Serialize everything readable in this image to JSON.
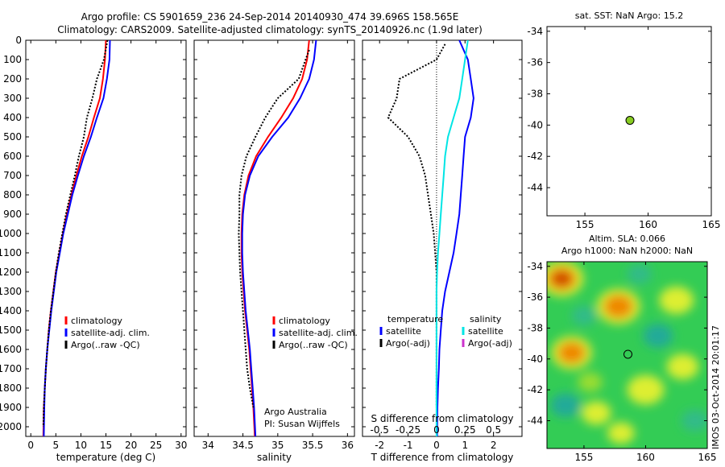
{
  "header": {
    "title_line1": "Argo profile: CS 5901659_236 24-Sep-2014 20140930_474 39.696S 158.565E",
    "title_line2": "Climatology: CARS2009. Satellite-adjusted climatology: synTS_20140926.nc (1.9d later)"
  },
  "colors": {
    "climatology": "#ff0000",
    "satellite": "#0000ff",
    "argo": "#000000",
    "satellite_salinity": "#00e5e5",
    "argo_salinity_adj": "#cc33cc",
    "marker": "#88cc22"
  },
  "watermark": "IMOS 03-Oct-2014 20:01:17",
  "chart_data": [
    {
      "id": "temperature",
      "type": "line",
      "xlabel": "temperature (deg C)",
      "xlim": [
        -1,
        31
      ],
      "xticks": [
        0,
        5,
        10,
        15,
        20,
        25,
        30
      ],
      "ylim": [
        2050,
        0
      ],
      "yticks": [
        0,
        100,
        200,
        300,
        400,
        500,
        600,
        700,
        800,
        900,
        1000,
        1100,
        1200,
        1300,
        1400,
        1500,
        1600,
        1700,
        1800,
        1900,
        2000
      ],
      "legend": [
        "climatology",
        "satellite-adj. clim.",
        "Argo(..raw -QC)"
      ],
      "series": [
        {
          "name": "climatology",
          "color": "#ff0000",
          "x": [
            15.0,
            14.8,
            14.4,
            13.8,
            12.6,
            11.5,
            10.2,
            9.1,
            8.1,
            7.2,
            6.4,
            5.7,
            5.0,
            4.5,
            4.0,
            3.6,
            3.3,
            3.0,
            2.8,
            2.6,
            2.5
          ],
          "y": [
            0,
            100,
            200,
            300,
            400,
            500,
            600,
            700,
            800,
            900,
            1000,
            1100,
            1200,
            1300,
            1400,
            1500,
            1600,
            1700,
            1800,
            1900,
            2050
          ]
        },
        {
          "name": "satellite-adj. clim.",
          "color": "#0000ff",
          "x": [
            15.8,
            15.7,
            15.2,
            14.5,
            13.2,
            12.0,
            10.6,
            9.4,
            8.3,
            7.4,
            6.5,
            5.8,
            5.1,
            4.6,
            4.1,
            3.7,
            3.3,
            3.0,
            2.8,
            2.7,
            2.6
          ],
          "y": [
            0,
            100,
            200,
            300,
            400,
            500,
            600,
            700,
            800,
            900,
            1000,
            1100,
            1200,
            1300,
            1400,
            1500,
            1600,
            1700,
            1800,
            1900,
            2050
          ]
        },
        {
          "name": "Argo(..raw -QC)",
          "color": "#000000",
          "x": [
            15.3,
            14.6,
            13.2,
            12.3,
            11.2,
            10.6,
            9.6,
            8.8,
            7.9,
            7.0,
            6.3,
            5.6,
            5.0,
            4.5,
            4.0,
            3.6,
            3.3,
            3.0,
            2.8,
            2.6,
            2.5
          ],
          "y": [
            0,
            100,
            200,
            300,
            400,
            500,
            600,
            700,
            800,
            900,
            1000,
            1100,
            1200,
            1300,
            1400,
            1500,
            1600,
            1700,
            1800,
            1900,
            2000
          ]
        }
      ]
    },
    {
      "id": "salinity",
      "type": "line",
      "xlabel": "salinity",
      "xlim": [
        33.8,
        36.1
      ],
      "xticks": [
        34,
        34.5,
        35,
        35.5,
        36
      ],
      "ylim": [
        2050,
        0
      ],
      "legend": [
        "climatology",
        "satellite-adj. clim.",
        "Argo(..raw -QC)"
      ],
      "annotation": [
        "Argo Australia",
        "PI: Susan Wijffels"
      ],
      "series": [
        {
          "name": "climatology",
          "color": "#ff0000",
          "x": [
            35.45,
            35.42,
            35.35,
            35.22,
            35.05,
            34.86,
            34.69,
            34.58,
            34.52,
            34.49,
            34.48,
            34.48,
            34.49,
            34.51,
            34.53,
            34.56,
            34.59,
            34.61,
            34.63,
            34.65,
            34.67
          ],
          "y": [
            0,
            100,
            200,
            300,
            400,
            500,
            600,
            700,
            800,
            900,
            1000,
            1100,
            1200,
            1300,
            1400,
            1500,
            1600,
            1700,
            1800,
            1900,
            2050
          ]
        },
        {
          "name": "satellite-adj. clim.",
          "color": "#0000ff",
          "x": [
            35.55,
            35.52,
            35.45,
            35.32,
            35.15,
            34.92,
            34.72,
            34.6,
            34.53,
            34.5,
            34.49,
            34.49,
            34.5,
            34.52,
            34.54,
            34.57,
            34.6,
            34.62,
            34.64,
            34.66,
            34.68
          ],
          "y": [
            0,
            100,
            200,
            300,
            400,
            500,
            600,
            700,
            800,
            900,
            1000,
            1100,
            1200,
            1300,
            1400,
            1500,
            1600,
            1700,
            1800,
            1900,
            2050
          ]
        },
        {
          "name": "Argo(..raw -QC)",
          "color": "#000000",
          "x": [
            35.45,
            35.4,
            35.3,
            35.0,
            34.82,
            34.68,
            34.55,
            34.48,
            34.45,
            34.45,
            34.44,
            34.45,
            34.46,
            34.48,
            34.5,
            34.52,
            34.54,
            34.56,
            34.6,
            34.65
          ],
          "y": [
            50,
            100,
            200,
            300,
            400,
            500,
            600,
            700,
            800,
            900,
            1000,
            1100,
            1200,
            1300,
            1400,
            1500,
            1600,
            1700,
            1800,
            1900
          ]
        }
      ]
    },
    {
      "id": "difference",
      "type": "line",
      "xlabel": "T difference from climatology",
      "xlabel_top": "S difference from climatology",
      "xlim": [
        -2.6,
        3.0
      ],
      "xticks": [
        -2,
        -1,
        0,
        1,
        2
      ],
      "xticks_salinity": [
        "-0.5",
        "-0.25",
        "0",
        "0.25",
        "0.5"
      ],
      "ylim": [
        2050,
        0
      ],
      "legend_temperature": {
        "title": "temperature",
        "items": [
          "satellite",
          "Argo(-adj)"
        ]
      },
      "legend_salinity": {
        "title": "salinity",
        "items": [
          "satellite",
          "Argo(-adj)"
        ]
      },
      "series": [
        {
          "name": "temperature satellite",
          "color": "#0000ff",
          "x": [
            0.8,
            1.1,
            1.2,
            1.3,
            1.2,
            1.0,
            0.95,
            0.9,
            0.85,
            0.8,
            0.7,
            0.6,
            0.45,
            0.3,
            0.2,
            0.15,
            0.1,
            0.08,
            0.05,
            0.03,
            0.02
          ],
          "y": [
            0,
            100,
            200,
            300,
            400,
            500,
            600,
            700,
            800,
            900,
            1000,
            1100,
            1200,
            1300,
            1400,
            1500,
            1600,
            1700,
            1800,
            1900,
            2050
          ]
        },
        {
          "name": "temperature Argo(-adj)",
          "color": "#000000",
          "x": [
            0.3,
            0.0,
            -1.3,
            -1.4,
            -1.7,
            -1.0,
            -0.6,
            -0.4,
            -0.3,
            -0.2,
            -0.1,
            -0.05,
            0.0,
            0.0,
            0.0,
            0.0,
            0.0,
            0.0,
            0.0,
            0.0
          ],
          "y": [
            20,
            100,
            200,
            300,
            400,
            500,
            600,
            700,
            800,
            900,
            1000,
            1100,
            1200,
            1300,
            1400,
            1500,
            1600,
            1700,
            1800,
            1900
          ]
        },
        {
          "name": "salinity satellite",
          "color": "#00e5e5",
          "x": [
            1.1,
            1.0,
            0.9,
            0.8,
            0.6,
            0.4,
            0.3,
            0.25,
            0.2,
            0.15,
            0.1,
            0.05,
            0.02,
            0.0,
            0.0,
            0.0,
            0.0,
            0.0,
            0.0,
            0.0,
            0.0
          ],
          "y": [
            0,
            100,
            200,
            300,
            400,
            500,
            600,
            700,
            800,
            900,
            1000,
            1100,
            1200,
            1300,
            1400,
            1500,
            1600,
            1700,
            1800,
            1900,
            2050
          ]
        }
      ]
    },
    {
      "id": "sst_map",
      "type": "scatter",
      "title": "sat. SST: NaN Argo: 15.2",
      "xlim": [
        152,
        165
      ],
      "ylim": [
        -45.8,
        -33.7
      ],
      "xticks": [
        155,
        160,
        165
      ],
      "yticks": [
        -34,
        -36,
        -38,
        -40,
        -42,
        -44
      ],
      "points": [
        {
          "x": 158.565,
          "y": -39.696
        }
      ]
    },
    {
      "id": "sla_map",
      "type": "heatmap",
      "title_line1": "Altim. SLA: 0.066",
      "title_line2": "Argo h1000: NaN h2000: NaN",
      "xlim": [
        152,
        165
      ],
      "ylim": [
        -45.8,
        -33.7
      ],
      "xticks": [
        155,
        160,
        165
      ],
      "yticks": [
        -34,
        -36,
        -38,
        -40,
        -42,
        -44
      ],
      "points": [
        {
          "x": 158.565,
          "y": -39.696
        }
      ],
      "blobs": [
        {
          "x": 153.2,
          "y": -34.8,
          "r": 1.6,
          "level": 1.0
        },
        {
          "x": 157.8,
          "y": -36.6,
          "r": 1.6,
          "level": 0.75
        },
        {
          "x": 154.0,
          "y": -39.6,
          "r": 1.5,
          "level": 0.85
        },
        {
          "x": 162.5,
          "y": -36.2,
          "r": 1.4,
          "level": 0.55
        },
        {
          "x": 160.0,
          "y": -42.0,
          "r": 1.5,
          "level": 0.55
        },
        {
          "x": 163.0,
          "y": -40.5,
          "r": 1.3,
          "level": 0.5
        },
        {
          "x": 156.0,
          "y": -43.5,
          "r": 1.2,
          "level": 0.5
        },
        {
          "x": 155.5,
          "y": -41.5,
          "r": 1.0,
          "level": 0.45
        },
        {
          "x": 158.0,
          "y": -44.8,
          "r": 1.1,
          "level": 0.5
        },
        {
          "x": 161.0,
          "y": -38.5,
          "r": 1.2,
          "level": -0.45
        },
        {
          "x": 153.5,
          "y": -43.0,
          "r": 1.2,
          "level": -0.4
        },
        {
          "x": 155.0,
          "y": -37.2,
          "r": 1.0,
          "level": -0.35
        },
        {
          "x": 164.0,
          "y": -44.0,
          "r": 1.1,
          "level": -0.35
        },
        {
          "x": 159.5,
          "y": -34.5,
          "r": 1.0,
          "level": -0.3
        }
      ]
    }
  ]
}
